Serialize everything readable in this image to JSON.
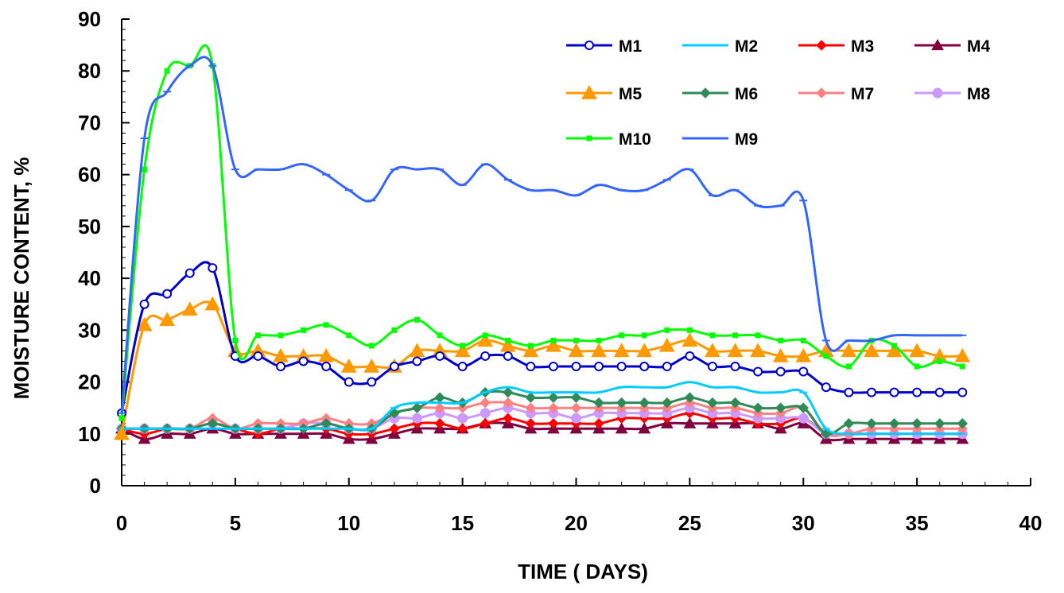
{
  "chart_data": {
    "type": "line",
    "xlabel": "TIME ( DAYS)",
    "ylabel": "MOISTURE CONTENT, %",
    "xlim": [
      0,
      40
    ],
    "ylim": [
      0,
      90
    ],
    "xticks": [
      "0",
      "5",
      "10",
      "15",
      "20",
      "25",
      "30",
      "35",
      "40"
    ],
    "yticks": [
      "0",
      "10",
      "20",
      "30",
      "40",
      "50",
      "60",
      "70",
      "80",
      "90"
    ],
    "grid": false,
    "legend_position": "top-right",
    "x": [
      0,
      1,
      2,
      3,
      4,
      5,
      6,
      7,
      8,
      9,
      10,
      11,
      12,
      13,
      14,
      15,
      16,
      17,
      18,
      19,
      20,
      21,
      22,
      23,
      24,
      25,
      26,
      27,
      28,
      29,
      30,
      31,
      32,
      33,
      34,
      35,
      36,
      37
    ],
    "series": [
      {
        "name": "M1",
        "color": "#0000cc",
        "marker": "open-circle",
        "values": [
          14,
          35,
          37,
          41,
          42,
          25,
          25,
          23,
          24,
          23,
          20,
          20,
          23,
          24,
          25,
          23,
          25,
          25,
          23,
          23,
          23,
          23,
          23,
          23,
          23,
          25,
          23,
          23,
          22,
          22,
          22,
          19,
          18,
          18,
          18,
          18,
          18,
          18
        ]
      },
      {
        "name": "M2",
        "color": "#00ccff",
        "marker": "dash",
        "values": [
          11,
          11,
          11,
          11,
          11,
          11,
          11,
          11,
          11,
          11,
          11,
          11,
          15,
          16,
          16,
          16,
          18,
          19,
          18,
          18,
          18,
          18,
          19,
          19,
          19,
          20,
          19,
          19,
          18,
          18,
          18,
          11,
          10,
          10,
          10,
          10,
          10,
          10
        ]
      },
      {
        "name": "M3",
        "color": "#ff0000",
        "marker": "diamond",
        "values": [
          11,
          10,
          11,
          11,
          12,
          11,
          10,
          11,
          11,
          11,
          10,
          10,
          11,
          12,
          12,
          11,
          12,
          13,
          12,
          12,
          12,
          12,
          13,
          13,
          13,
          14,
          13,
          13,
          12,
          12,
          13,
          10,
          10,
          10,
          10,
          10,
          10,
          10
        ]
      },
      {
        "name": "M4",
        "color": "#800040",
        "marker": "triangle",
        "values": [
          11,
          9,
          10,
          10,
          11,
          10,
          10,
          10,
          10,
          10,
          9,
          9,
          10,
          11,
          11,
          11,
          12,
          12,
          11,
          11,
          11,
          11,
          11,
          11,
          12,
          12,
          12,
          12,
          12,
          11,
          12,
          9,
          9,
          9,
          9,
          9,
          9,
          9
        ]
      },
      {
        "name": "M5",
        "color": "#ff9900",
        "marker": "triangle",
        "values": [
          10,
          31,
          32,
          34,
          35,
          26,
          26,
          25,
          25,
          25,
          23,
          23,
          23,
          26,
          26,
          26,
          28,
          27,
          26,
          27,
          26,
          26,
          26,
          26,
          27,
          28,
          26,
          26,
          26,
          25,
          25,
          26,
          26,
          26,
          26,
          26,
          25,
          25
        ]
      },
      {
        "name": "M6",
        "color": "#2e8b57",
        "marker": "diamond",
        "values": [
          11,
          11,
          11,
          11,
          12,
          11,
          11,
          11,
          11,
          12,
          11,
          11,
          14,
          15,
          17,
          16,
          18,
          18,
          17,
          17,
          17,
          16,
          16,
          16,
          16,
          17,
          16,
          16,
          15,
          15,
          15,
          10,
          12,
          12,
          12,
          12,
          12,
          12
        ]
      },
      {
        "name": "M7",
        "color": "#ff8080",
        "marker": "diamond",
        "values": [
          11,
          11,
          11,
          11,
          13,
          11,
          12,
          12,
          12,
          13,
          12,
          12,
          14,
          15,
          15,
          15,
          16,
          16,
          15,
          15,
          15,
          15,
          15,
          15,
          15,
          16,
          15,
          15,
          14,
          14,
          15,
          10,
          10,
          11,
          11,
          11,
          11,
          11
        ]
      },
      {
        "name": "M8",
        "color": "#cc99ff",
        "marker": "circle",
        "values": [
          11,
          11,
          11,
          11,
          12,
          11,
          11,
          11,
          12,
          12,
          11,
          11,
          13,
          13,
          14,
          13,
          14,
          15,
          14,
          14,
          13,
          14,
          14,
          14,
          14,
          15,
          14,
          14,
          13,
          13,
          13,
          10,
          10,
          10,
          10,
          10,
          10,
          10
        ]
      },
      {
        "name": "M10",
        "color": "#00ff00",
        "marker": "square",
        "values": [
          13,
          61,
          80,
          81,
          81,
          28,
          29,
          29,
          30,
          31,
          29,
          27,
          30,
          32,
          29,
          27,
          29,
          28,
          27,
          28,
          28,
          28,
          29,
          29,
          30,
          30,
          29,
          29,
          29,
          28,
          28,
          25,
          23,
          28,
          27,
          23,
          24,
          23
        ]
      },
      {
        "name": "M9",
        "color": "#3366ff",
        "marker": "dash",
        "values": [
          14,
          67,
          76,
          81,
          81,
          61,
          61,
          61,
          62,
          60,
          57,
          55,
          61,
          61,
          61,
          58,
          62,
          59,
          57,
          57,
          56,
          58,
          57,
          57,
          59,
          61,
          56,
          57,
          54,
          54,
          55,
          28,
          28,
          28,
          29,
          29,
          29,
          29
        ]
      }
    ]
  }
}
